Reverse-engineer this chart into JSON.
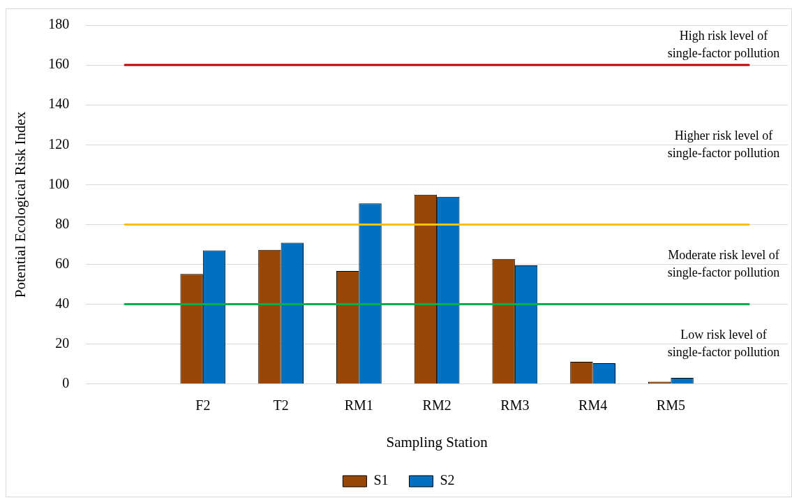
{
  "chart_data": {
    "type": "bar",
    "xlabel": "Sampling Station",
    "ylabel": "Potential Ecological Risk Index",
    "categories": [
      null,
      "F2",
      "T2",
      "RM1",
      "RM2",
      "RM3",
      "RM4",
      "RM5",
      null
    ],
    "series": [
      {
        "name": "S1",
        "color": "#974706",
        "values": [
          null,
          55.2,
          67.3,
          56.7,
          95.0,
          62.7,
          11.1,
          1.2,
          null
        ]
      },
      {
        "name": "S2",
        "color": "#0070c0",
        "values": [
          null,
          67.0,
          70.9,
          90.6,
          93.9,
          59.5,
          10.4,
          3.1,
          null
        ]
      }
    ],
    "ylim": [
      0,
      180
    ],
    "yticks": [
      0,
      20,
      40,
      60,
      80,
      100,
      120,
      140,
      160,
      180
    ],
    "grid": "y",
    "legend": "bottom",
    "ref_lines": [
      {
        "axis": "y",
        "value": 160,
        "color": "#c00000"
      },
      {
        "axis": "y",
        "value": 80,
        "color": "#ffc000"
      },
      {
        "axis": "y",
        "value": 40,
        "color": "#00b050"
      }
    ],
    "annotations": [
      "High risk level of single-factor pollution",
      "Higher risk level of single-factor pollution",
      "Moderate risk level of single-factor pollution",
      "Low risk level of single-factor pollution"
    ]
  }
}
